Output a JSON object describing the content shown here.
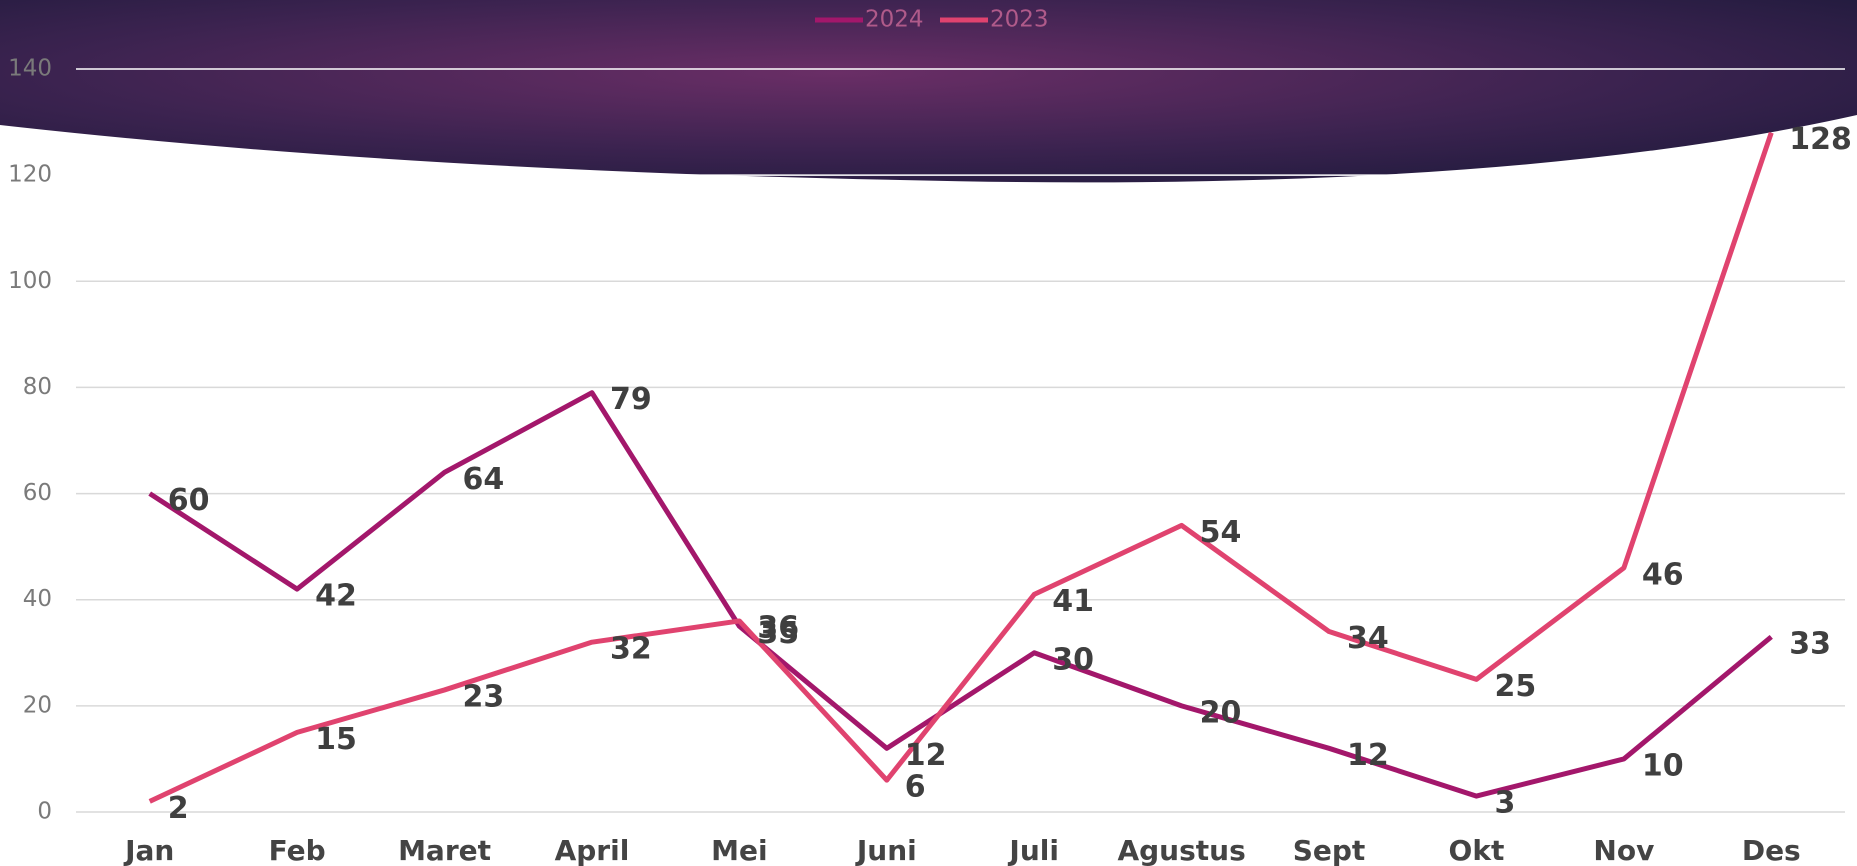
{
  "chart_data": {
    "type": "line",
    "categories": [
      "Jan",
      "Feb",
      "Maret",
      "April",
      "Mei",
      "Juni",
      "Juli",
      "Agustus",
      "Sept",
      "Okt",
      "Nov",
      "Des"
    ],
    "series": [
      {
        "name": "2024",
        "color": "#a3176b",
        "values": [
          60,
          42,
          64,
          79,
          35,
          12,
          30,
          20,
          12,
          3,
          10,
          33
        ]
      },
      {
        "name": "2023",
        "color": "#e0436f",
        "values": [
          2,
          15,
          23,
          32,
          36,
          6,
          41,
          54,
          34,
          25,
          46,
          128
        ]
      }
    ],
    "ylim": [
      0,
      140
    ],
    "yticks": [
      0,
      20,
      40,
      60,
      80,
      100,
      120,
      140
    ],
    "grid": true,
    "legend": "top"
  }
}
